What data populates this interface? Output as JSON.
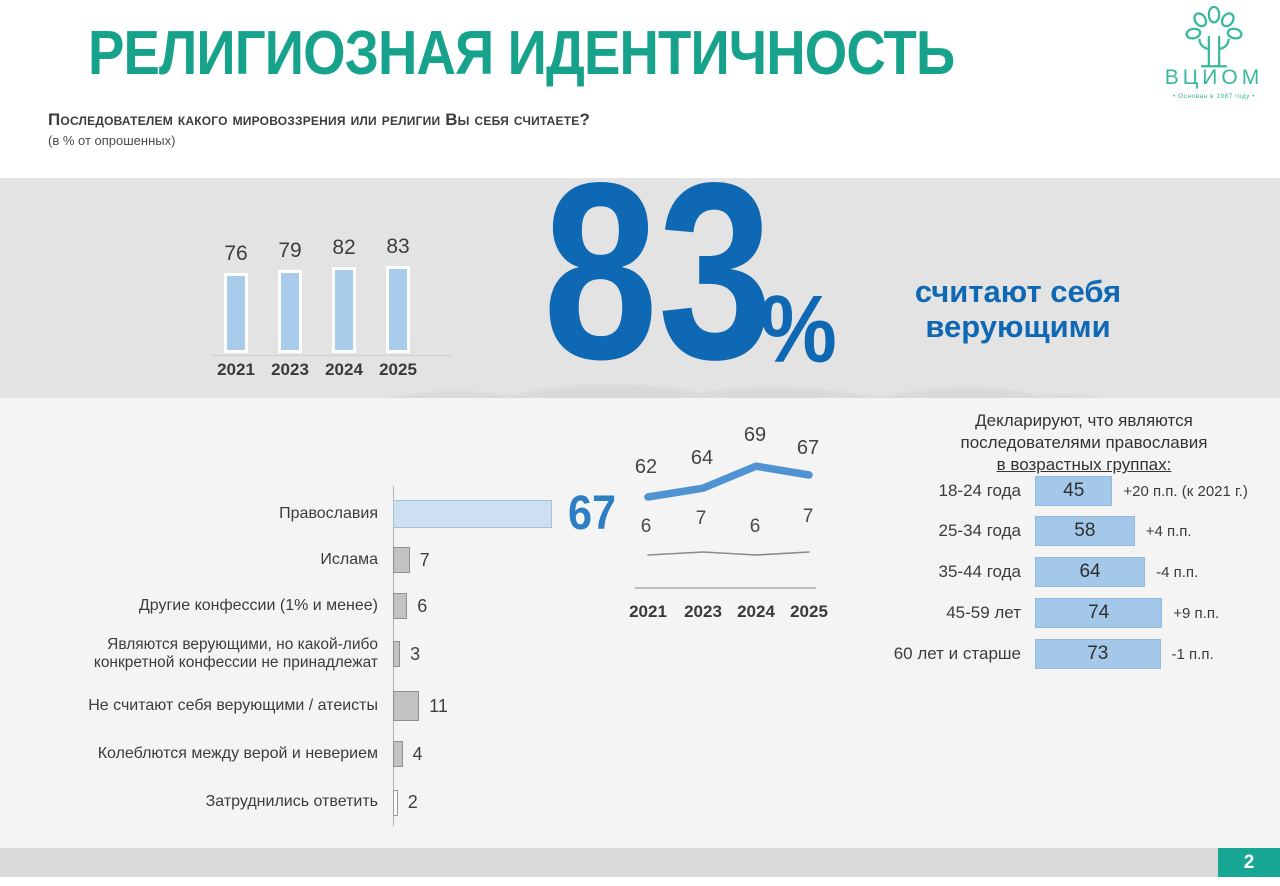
{
  "header": {
    "title": "РЕЛИГИОЗНАЯ ИДЕНТИЧНОСТЬ",
    "question": "Последователем какого мировоззрения или религии Вы себя считаете?",
    "note": "(в % от опрошенных)",
    "logo": {
      "name": "ВЦИОМ",
      "tagline": "• Основан в 1987 году •"
    }
  },
  "big_stat": {
    "value": "83",
    "unit": "%",
    "caption": "считают себя верующими"
  },
  "footer": {
    "page_number": "2"
  },
  "colors": {
    "accent_teal": "#16a28b",
    "accent_blue": "#0e68b3",
    "light_blue_bar": "#a7cbe9",
    "pale_blue_bar": "#cde0f2",
    "gray_bar": "#c3c3c3",
    "trend_line_blue": "#4f93d3",
    "trend_line_gray": "#8a8a8a"
  },
  "chart_data": [
    {
      "id": "believers_share_by_year",
      "type": "bar",
      "categories": [
        "2021",
        "2023",
        "2024",
        "2025"
      ],
      "values": [
        76,
        79,
        82,
        83
      ],
      "ylim": [
        0,
        100
      ],
      "grid": false,
      "bar_color": "#a7cbe9"
    },
    {
      "id": "confessions",
      "type": "bar",
      "orientation": "horizontal",
      "categories": [
        "Православия",
        "Ислама",
        "Другие конфессии (1% и менее)",
        "Являются верующими, но какой-либо конкретной конфессии не принадлежат",
        "Не считают себя верующими / атеисты",
        "Колеблются между верой и неверием",
        "Затруднились ответить"
      ],
      "values": [
        67,
        7,
        6,
        3,
        11,
        4,
        2
      ],
      "highlight_index": 0,
      "grid": false
    },
    {
      "id": "confession_trend",
      "type": "line",
      "x": [
        "2021",
        "2023",
        "2024",
        "2025"
      ],
      "series": [
        {
          "name": "blue_line",
          "values": [
            62,
            64,
            69,
            67
          ],
          "color": "#4f93d3"
        },
        {
          "name": "gray_line",
          "values": [
            6,
            7,
            6,
            7
          ],
          "color": "#8a8a8a"
        }
      ],
      "grid": false,
      "legend": "none"
    },
    {
      "id": "orthodoxy_by_age",
      "type": "bar",
      "orientation": "horizontal",
      "title_lines": [
        "Декларируют, что являются",
        "последователями православия",
        "в возрастных группах:"
      ],
      "categories": [
        "18-24 года",
        "25-34 года",
        "35-44 года",
        "45-59 лет",
        "60 лет и старше"
      ],
      "values": [
        45,
        58,
        64,
        74,
        73
      ],
      "deltas": [
        "+20 п.п. (к 2021 г.)",
        "+4 п.п.",
        "-4 п.п.",
        "+9 п.п.",
        "-1 п.п."
      ],
      "bar_color": "#a3c8e9"
    }
  ]
}
